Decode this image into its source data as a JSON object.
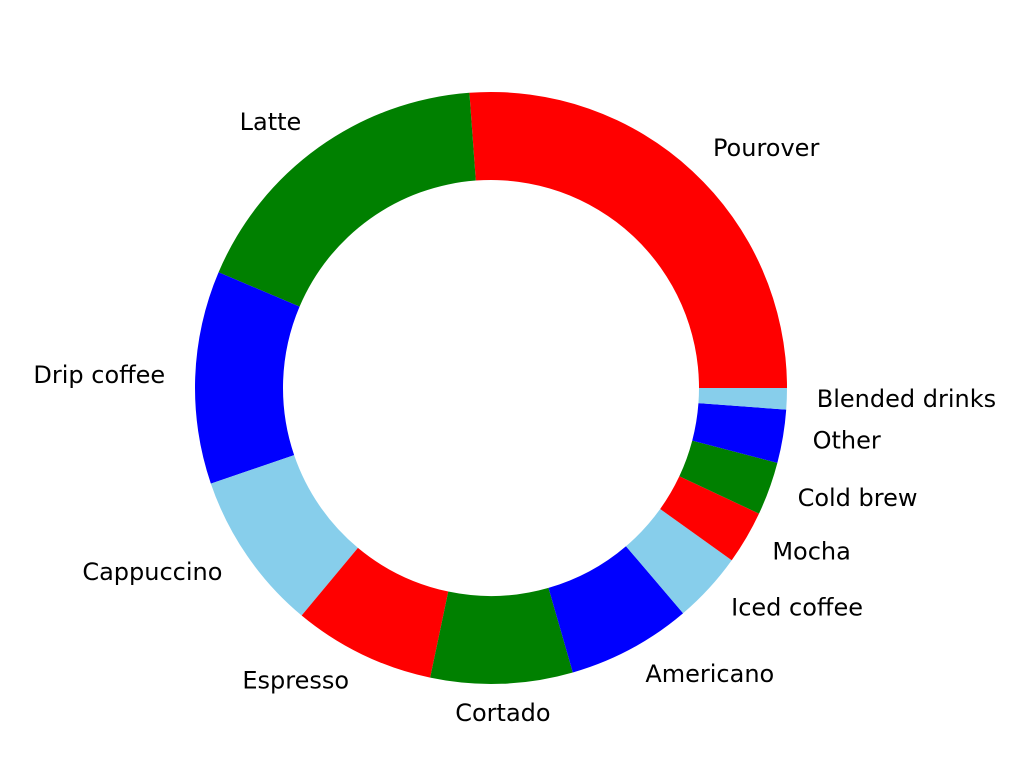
{
  "chart_data": {
    "type": "pie",
    "style": "donut",
    "categories": [
      "Pourover",
      "Latte",
      "Drip coffee",
      "Cappuccino",
      "Espresso",
      "Cortado",
      "Americano",
      "Iced coffee",
      "Mocha",
      "Cold brew",
      "Other",
      "Blended drinks"
    ],
    "values": [
      27,
      18,
      12,
      9,
      8,
      8,
      7,
      4,
      3,
      3,
      3,
      1.2
    ],
    "colors": [
      "#ff0000",
      "#008000",
      "#0000ff",
      "#87ceeb",
      "#ff0000",
      "#008000",
      "#0000ff",
      "#87ceeb",
      "#ff0000",
      "#008000",
      "#0000ff",
      "#87ceeb"
    ],
    "start_angle_deg": 0,
    "direction": "counterclockwise",
    "legend": "none"
  }
}
